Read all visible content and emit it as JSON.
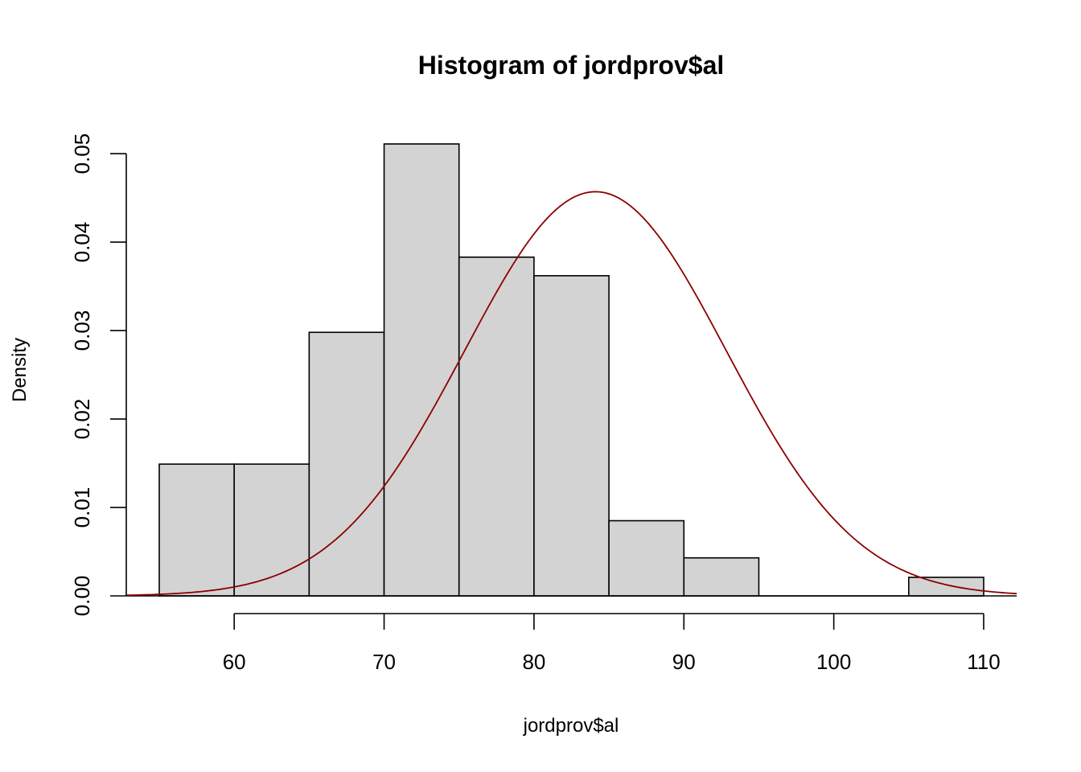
{
  "chart_data": {
    "type": "bar",
    "subtype": "histogram",
    "title": "Histogram of jordprov$al",
    "xlabel": "jordprov$al",
    "ylabel": "Density",
    "bins": [
      {
        "from": 55,
        "to": 60,
        "density": 0.0149
      },
      {
        "from": 60,
        "to": 65,
        "density": 0.0149
      },
      {
        "from": 65,
        "to": 70,
        "density": 0.0298
      },
      {
        "from": 70,
        "to": 75,
        "density": 0.0511
      },
      {
        "from": 75,
        "to": 80,
        "density": 0.0383
      },
      {
        "from": 80,
        "to": 85,
        "density": 0.0362
      },
      {
        "from": 85,
        "to": 90,
        "density": 0.0085
      },
      {
        "from": 90,
        "to": 95,
        "density": 0.0043
      },
      {
        "from": 95,
        "to": 100,
        "density": 0
      },
      {
        "from": 100,
        "to": 105,
        "density": 0
      },
      {
        "from": 105,
        "to": 110,
        "density": 0.0021
      }
    ],
    "xlim": [
      52.8,
      112.2
    ],
    "ylim": [
      0,
      0.0511
    ],
    "x_ticks": [
      60,
      70,
      80,
      90,
      100,
      110
    ],
    "x_tick_labels": [
      "60",
      "70",
      "80",
      "90",
      "100",
      "110"
    ],
    "y_ticks": [
      0,
      0.01,
      0.02,
      0.03,
      0.04,
      0.05
    ],
    "y_tick_labels": [
      "0.00",
      "0.01",
      "0.02",
      "0.03",
      "0.04",
      "0.05"
    ],
    "overlay_curve": {
      "type": "normal_density",
      "mean": 84.1,
      "sd": 8.73,
      "color": "#8b0000"
    },
    "bar_color": "#d3d3d3",
    "grid": false
  }
}
